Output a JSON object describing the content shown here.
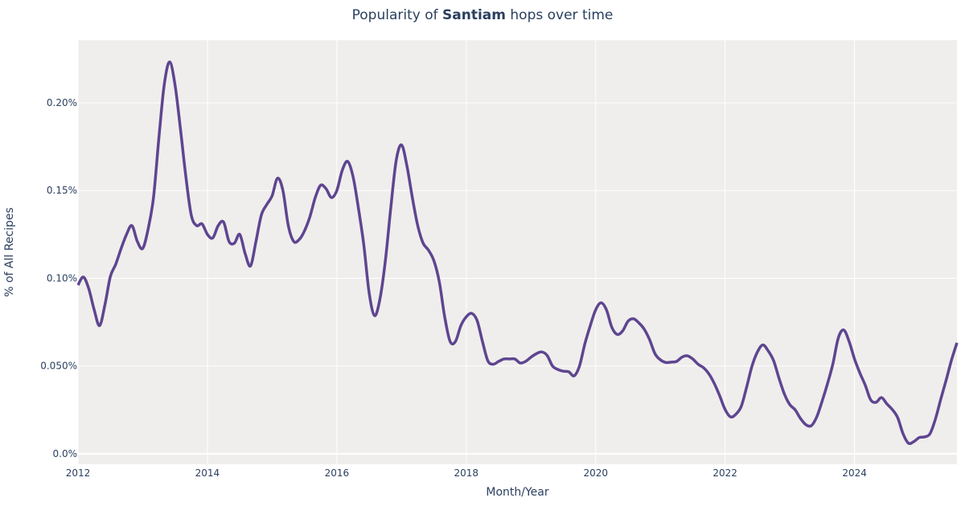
{
  "chart_data": {
    "type": "line",
    "title": {
      "prefix": "Popularity of ",
      "bold": "Santiam",
      "suffix": " hops over time"
    },
    "xlabel": "Month/Year",
    "ylabel": "% of All Recipes",
    "xlim": [
      "2012-01",
      "2025-08"
    ],
    "ylim": [
      -0.006,
      0.2357
    ],
    "x_ticks": [
      "2012",
      "2014",
      "2016",
      "2018",
      "2020",
      "2022",
      "2024"
    ],
    "y_ticks": [
      {
        "value": 0,
        "label": "0.0%"
      },
      {
        "value": 0.05,
        "label": "0.050%"
      },
      {
        "value": 0.1,
        "label": "0.10%"
      },
      {
        "value": 0.15,
        "label": "0.15%"
      },
      {
        "value": 0.2,
        "label": "0.20%"
      }
    ],
    "grid": true,
    "colors": {
      "line": "#5e4590",
      "plot_bg": "#efeeec",
      "grid": "#ffffff",
      "text": "#2a3f5f"
    },
    "series": [
      {
        "x": [
          "2012-01",
          "2012-02",
          "2012-03",
          "2012-04",
          "2012-05",
          "2012-06",
          "2012-07",
          "2012-08",
          "2012-09",
          "2012-10",
          "2012-11",
          "2012-12",
          "2013-01",
          "2013-02",
          "2013-03",
          "2013-04",
          "2013-05",
          "2013-06",
          "2013-07",
          "2013-08",
          "2013-09",
          "2013-10",
          "2013-11",
          "2013-12",
          "2014-01",
          "2014-02",
          "2014-03",
          "2014-04",
          "2014-05",
          "2014-06",
          "2014-07",
          "2014-08",
          "2014-09",
          "2014-10",
          "2014-11",
          "2014-12",
          "2015-01",
          "2015-02",
          "2015-03",
          "2015-04",
          "2015-05",
          "2015-06",
          "2015-07",
          "2015-08",
          "2015-09",
          "2015-10",
          "2015-11",
          "2015-12",
          "2016-01",
          "2016-02",
          "2016-03",
          "2016-04",
          "2016-05",
          "2016-06",
          "2016-07",
          "2016-08",
          "2016-09",
          "2016-10",
          "2016-11",
          "2016-12",
          "2017-01",
          "2017-02",
          "2017-03",
          "2017-04",
          "2017-05",
          "2017-06",
          "2017-07",
          "2017-08",
          "2017-09",
          "2017-10",
          "2017-11",
          "2017-12",
          "2018-01",
          "2018-02",
          "2018-03",
          "2018-04",
          "2018-05",
          "2018-06",
          "2018-07",
          "2018-08",
          "2018-09",
          "2018-10",
          "2018-11",
          "2018-12",
          "2019-01",
          "2019-02",
          "2019-03",
          "2019-04",
          "2019-05",
          "2019-06",
          "2019-07",
          "2019-08",
          "2019-09",
          "2019-10",
          "2019-11",
          "2019-12",
          "2020-01",
          "2020-02",
          "2020-03",
          "2020-04",
          "2020-05",
          "2020-06",
          "2020-07",
          "2020-08",
          "2020-09",
          "2020-10",
          "2020-11",
          "2020-12",
          "2021-01",
          "2021-02",
          "2021-03",
          "2021-04",
          "2021-05",
          "2021-06",
          "2021-07",
          "2021-08",
          "2021-09",
          "2021-10",
          "2021-11",
          "2021-12",
          "2022-01",
          "2022-02",
          "2022-03",
          "2022-04",
          "2022-05",
          "2022-06",
          "2022-07",
          "2022-08",
          "2022-09",
          "2022-10",
          "2022-11",
          "2022-12",
          "2023-01",
          "2023-02",
          "2023-03",
          "2023-04",
          "2023-05",
          "2023-06",
          "2023-07",
          "2023-08",
          "2023-09",
          "2023-10",
          "2023-11",
          "2023-12",
          "2024-01",
          "2024-02",
          "2024-03",
          "2024-04",
          "2024-05",
          "2024-06",
          "2024-07",
          "2024-08",
          "2024-09",
          "2024-10",
          "2024-11",
          "2024-12",
          "2025-01",
          "2025-02",
          "2025-03",
          "2025-04",
          "2025-05",
          "2025-06",
          "2025-07",
          "2025-08"
        ],
        "y": [
          0.0961,
          0.1007,
          0.094,
          0.082,
          0.073,
          0.085,
          0.101,
          0.108,
          0.117,
          0.125,
          0.13,
          0.121,
          0.117,
          0.128,
          0.146,
          0.18,
          0.2105,
          0.2233,
          0.21,
          0.185,
          0.158,
          0.136,
          0.13,
          0.131,
          0.125,
          0.123,
          0.13,
          0.132,
          0.121,
          0.12,
          0.125,
          0.114,
          0.107,
          0.121,
          0.136,
          0.142,
          0.147,
          0.157,
          0.15,
          0.13,
          0.121,
          0.122,
          0.127,
          0.135,
          0.146,
          0.153,
          0.151,
          0.146,
          0.15,
          0.1615,
          0.1666,
          0.158,
          0.14,
          0.119,
          0.0915,
          0.0787,
          0.0883,
          0.11,
          0.14,
          0.167,
          0.176,
          0.164,
          0.146,
          0.13,
          0.12,
          0.116,
          0.11,
          0.098,
          0.078,
          0.064,
          0.064,
          0.073,
          0.078,
          0.08,
          0.076,
          0.064,
          0.053,
          0.051,
          0.0526,
          0.054,
          0.054,
          0.054,
          0.0517,
          0.0526,
          0.055,
          0.057,
          0.058,
          0.056,
          0.05,
          0.048,
          0.047,
          0.0467,
          0.0444,
          0.05,
          0.0627,
          0.073,
          0.082,
          0.086,
          0.082,
          0.072,
          0.068,
          0.07,
          0.0755,
          0.0769,
          0.0746,
          0.071,
          0.065,
          0.057,
          0.0535,
          0.052,
          0.0522,
          0.0526,
          0.055,
          0.0558,
          0.054,
          0.051,
          0.049,
          0.0455,
          0.04,
          0.033,
          0.0252,
          0.021,
          0.0225,
          0.027,
          0.038,
          0.05,
          0.058,
          0.062,
          0.0586,
          0.053,
          0.043,
          0.034,
          0.028,
          0.025,
          0.02,
          0.0165,
          0.016,
          0.021,
          0.03,
          0.04,
          0.0513,
          0.066,
          0.0705,
          0.064,
          0.054,
          0.046,
          0.039,
          0.0307,
          0.0293,
          0.032,
          0.0284,
          0.0252,
          0.0206,
          0.0114,
          0.006,
          0.0069,
          0.0092,
          0.0096,
          0.0114,
          0.0197,
          0.0311,
          0.042,
          0.0535,
          0.0632
        ]
      }
    ]
  }
}
